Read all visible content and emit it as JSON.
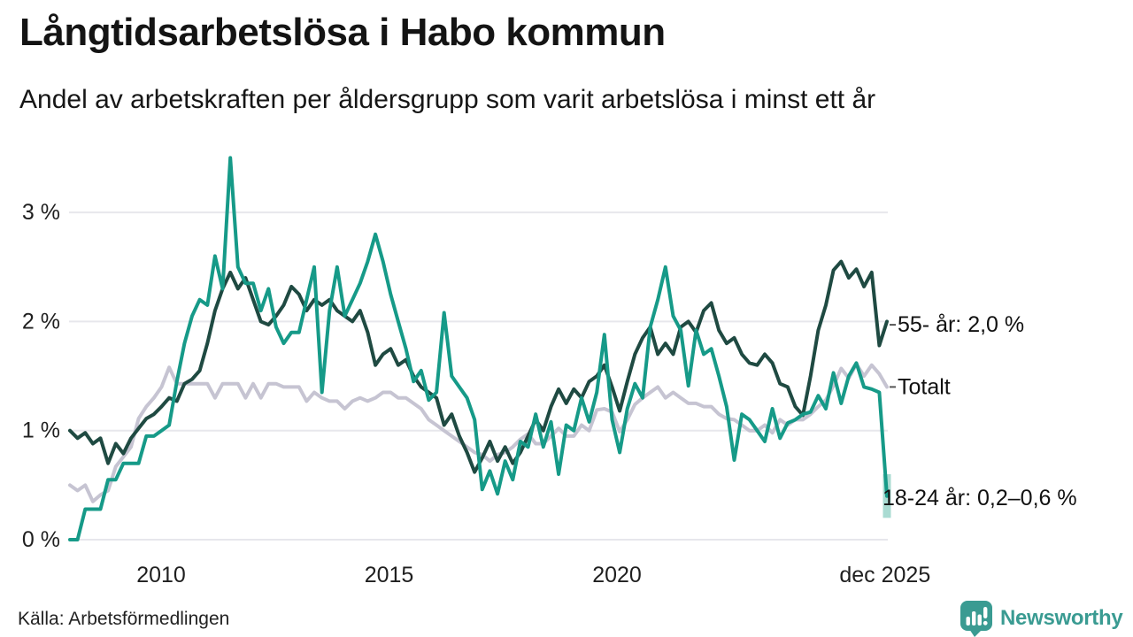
{
  "header": {
    "title": "Långtidsarbetslösa i Habo kommun",
    "subtitle": "Andel av arbetskraften per åldersgrupp som varit arbetslösa i minst ett år"
  },
  "footer": {
    "source": "Källa: Arbetsförmedlingen",
    "brand": "Newsworthy",
    "brand_color": "#3a9b92"
  },
  "chart_data": {
    "type": "line",
    "title": "Långtidsarbetslösa i Habo kommun",
    "subtitle": "Andel av arbetskraften per åldersgrupp som varit arbetslösa i minst ett år",
    "unit": "% av arbetskraften",
    "x_start": 2008.0,
    "x_step": 0.1675,
    "xlim": [
      2008,
      2026
    ],
    "ylim": [
      0,
      3.65
    ],
    "grid": true,
    "y_ticks": [
      {
        "v": 0,
        "label": "0 %"
      },
      {
        "v": 1,
        "label": "1 %"
      },
      {
        "v": 2,
        "label": "2 %"
      },
      {
        "v": 3,
        "label": "3 %"
      }
    ],
    "x_ticks": [
      {
        "t": 2010,
        "label": "2010"
      },
      {
        "t": 2015,
        "label": "2015"
      },
      {
        "t": 2020,
        "label": "2020"
      },
      {
        "t": 2025.88,
        "label": "dec 2025"
      }
    ],
    "style": {
      "grid_color": "#e7e7ec",
      "tick_color": "#1f1f1f",
      "annotation_color": "#111111",
      "leader_dash_color": "#555555",
      "line_width": 4
    },
    "series": [
      {
        "name": "Totalt",
        "color": "#c6c4d2",
        "values": [
          0.5,
          0.45,
          0.5,
          0.35,
          0.41,
          0.45,
          0.67,
          0.76,
          0.85,
          1.11,
          1.22,
          1.3,
          1.4,
          1.58,
          1.43,
          1.43,
          1.43,
          1.43,
          1.43,
          1.3,
          1.43,
          1.43,
          1.43,
          1.3,
          1.43,
          1.3,
          1.43,
          1.43,
          1.4,
          1.4,
          1.4,
          1.27,
          1.35,
          1.3,
          1.27,
          1.27,
          1.2,
          1.27,
          1.3,
          1.27,
          1.3,
          1.35,
          1.35,
          1.3,
          1.3,
          1.25,
          1.2,
          1.1,
          1.05,
          1.0,
          0.95,
          0.9,
          0.85,
          0.8,
          0.78,
          0.72,
          0.78,
          0.8,
          0.85,
          0.92,
          0.97,
          0.88,
          0.88,
          0.95,
          1.02,
          0.95,
          0.95,
          1.05,
          1.0,
          1.19,
          1.2,
          1.17,
          0.99,
          1.1,
          1.24,
          1.3,
          1.35,
          1.4,
          1.3,
          1.35,
          1.3,
          1.25,
          1.25,
          1.22,
          1.22,
          1.15,
          1.11,
          1.1,
          1.05,
          1.0,
          1.0,
          1.05,
          0.98,
          1.1,
          1.05,
          1.1,
          1.1,
          1.15,
          1.22,
          1.28,
          1.41,
          1.57,
          1.48,
          1.61,
          1.5,
          1.6,
          1.52,
          1.4
        ]
      },
      {
        "name": "55- år",
        "color": "#1f4a42",
        "values": [
          1.0,
          0.93,
          0.98,
          0.88,
          0.93,
          0.7,
          0.88,
          0.79,
          0.93,
          1.02,
          1.11,
          1.15,
          1.22,
          1.3,
          1.27,
          1.43,
          1.47,
          1.55,
          1.8,
          2.1,
          2.3,
          2.45,
          2.3,
          2.4,
          2.2,
          2.0,
          1.97,
          2.05,
          2.15,
          2.32,
          2.25,
          2.1,
          2.2,
          2.15,
          2.2,
          2.1,
          2.05,
          2.0,
          2.1,
          1.9,
          1.6,
          1.7,
          1.75,
          1.6,
          1.65,
          1.5,
          1.4,
          1.35,
          1.3,
          1.05,
          1.15,
          0.95,
          0.8,
          0.62,
          0.75,
          0.9,
          0.72,
          0.85,
          0.7,
          0.8,
          0.95,
          1.1,
          1.0,
          1.22,
          1.38,
          1.25,
          1.38,
          1.3,
          1.45,
          1.5,
          1.6,
          1.4,
          1.18,
          1.45,
          1.7,
          1.85,
          1.95,
          1.7,
          1.8,
          1.7,
          1.95,
          2.0,
          1.9,
          2.1,
          2.17,
          1.92,
          1.8,
          1.85,
          1.7,
          1.62,
          1.6,
          1.7,
          1.62,
          1.43,
          1.4,
          1.22,
          1.14,
          1.5,
          1.92,
          2.15,
          2.47,
          2.55,
          2.4,
          2.48,
          2.32,
          2.45,
          1.78,
          2.0
        ]
      },
      {
        "name": "18-24 år",
        "color": "#169a88",
        "values": [
          0.0,
          0.0,
          0.28,
          0.28,
          0.28,
          0.55,
          0.55,
          0.7,
          0.7,
          0.7,
          0.95,
          0.95,
          1.0,
          1.05,
          1.45,
          1.8,
          2.05,
          2.2,
          2.15,
          2.6,
          2.3,
          3.5,
          2.5,
          2.35,
          2.35,
          2.1,
          2.3,
          1.95,
          1.8,
          1.9,
          1.9,
          2.2,
          2.5,
          1.35,
          2.1,
          2.5,
          2.05,
          2.2,
          2.35,
          2.55,
          2.8,
          2.55,
          2.25,
          2.0,
          1.75,
          1.45,
          1.55,
          1.28,
          1.35,
          2.08,
          1.5,
          1.4,
          1.3,
          1.1,
          0.46,
          0.63,
          0.42,
          0.72,
          0.55,
          0.9,
          0.85,
          1.15,
          0.85,
          1.08,
          0.6,
          1.05,
          1.0,
          1.3,
          1.08,
          1.35,
          1.88,
          1.1,
          0.8,
          1.2,
          1.43,
          1.3,
          1.95,
          2.2,
          2.5,
          2.05,
          1.92,
          1.41,
          1.92,
          1.7,
          1.75,
          1.5,
          1.22,
          0.73,
          1.15,
          1.1,
          1.0,
          0.9,
          1.2,
          0.93,
          1.07,
          1.1,
          1.15,
          1.17,
          1.32,
          1.2,
          1.53,
          1.25,
          1.5,
          1.62,
          1.4,
          1.38,
          1.35,
          0.4
        ],
        "end_band": {
          "low": 0.2,
          "high": 0.6,
          "color": "#a9dbd2"
        }
      }
    ],
    "annotations": [
      {
        "text": "55- år: 2,0 %",
        "y_value": 1.97,
        "x": 1014,
        "dash": true
      },
      {
        "text": "Totalt",
        "y_value": 1.4,
        "x": 1014,
        "dash": true
      },
      {
        "text": "18-24 år: 0,2–0,6 %",
        "y_value": 0.38,
        "x": 997,
        "dash": false
      }
    ]
  }
}
